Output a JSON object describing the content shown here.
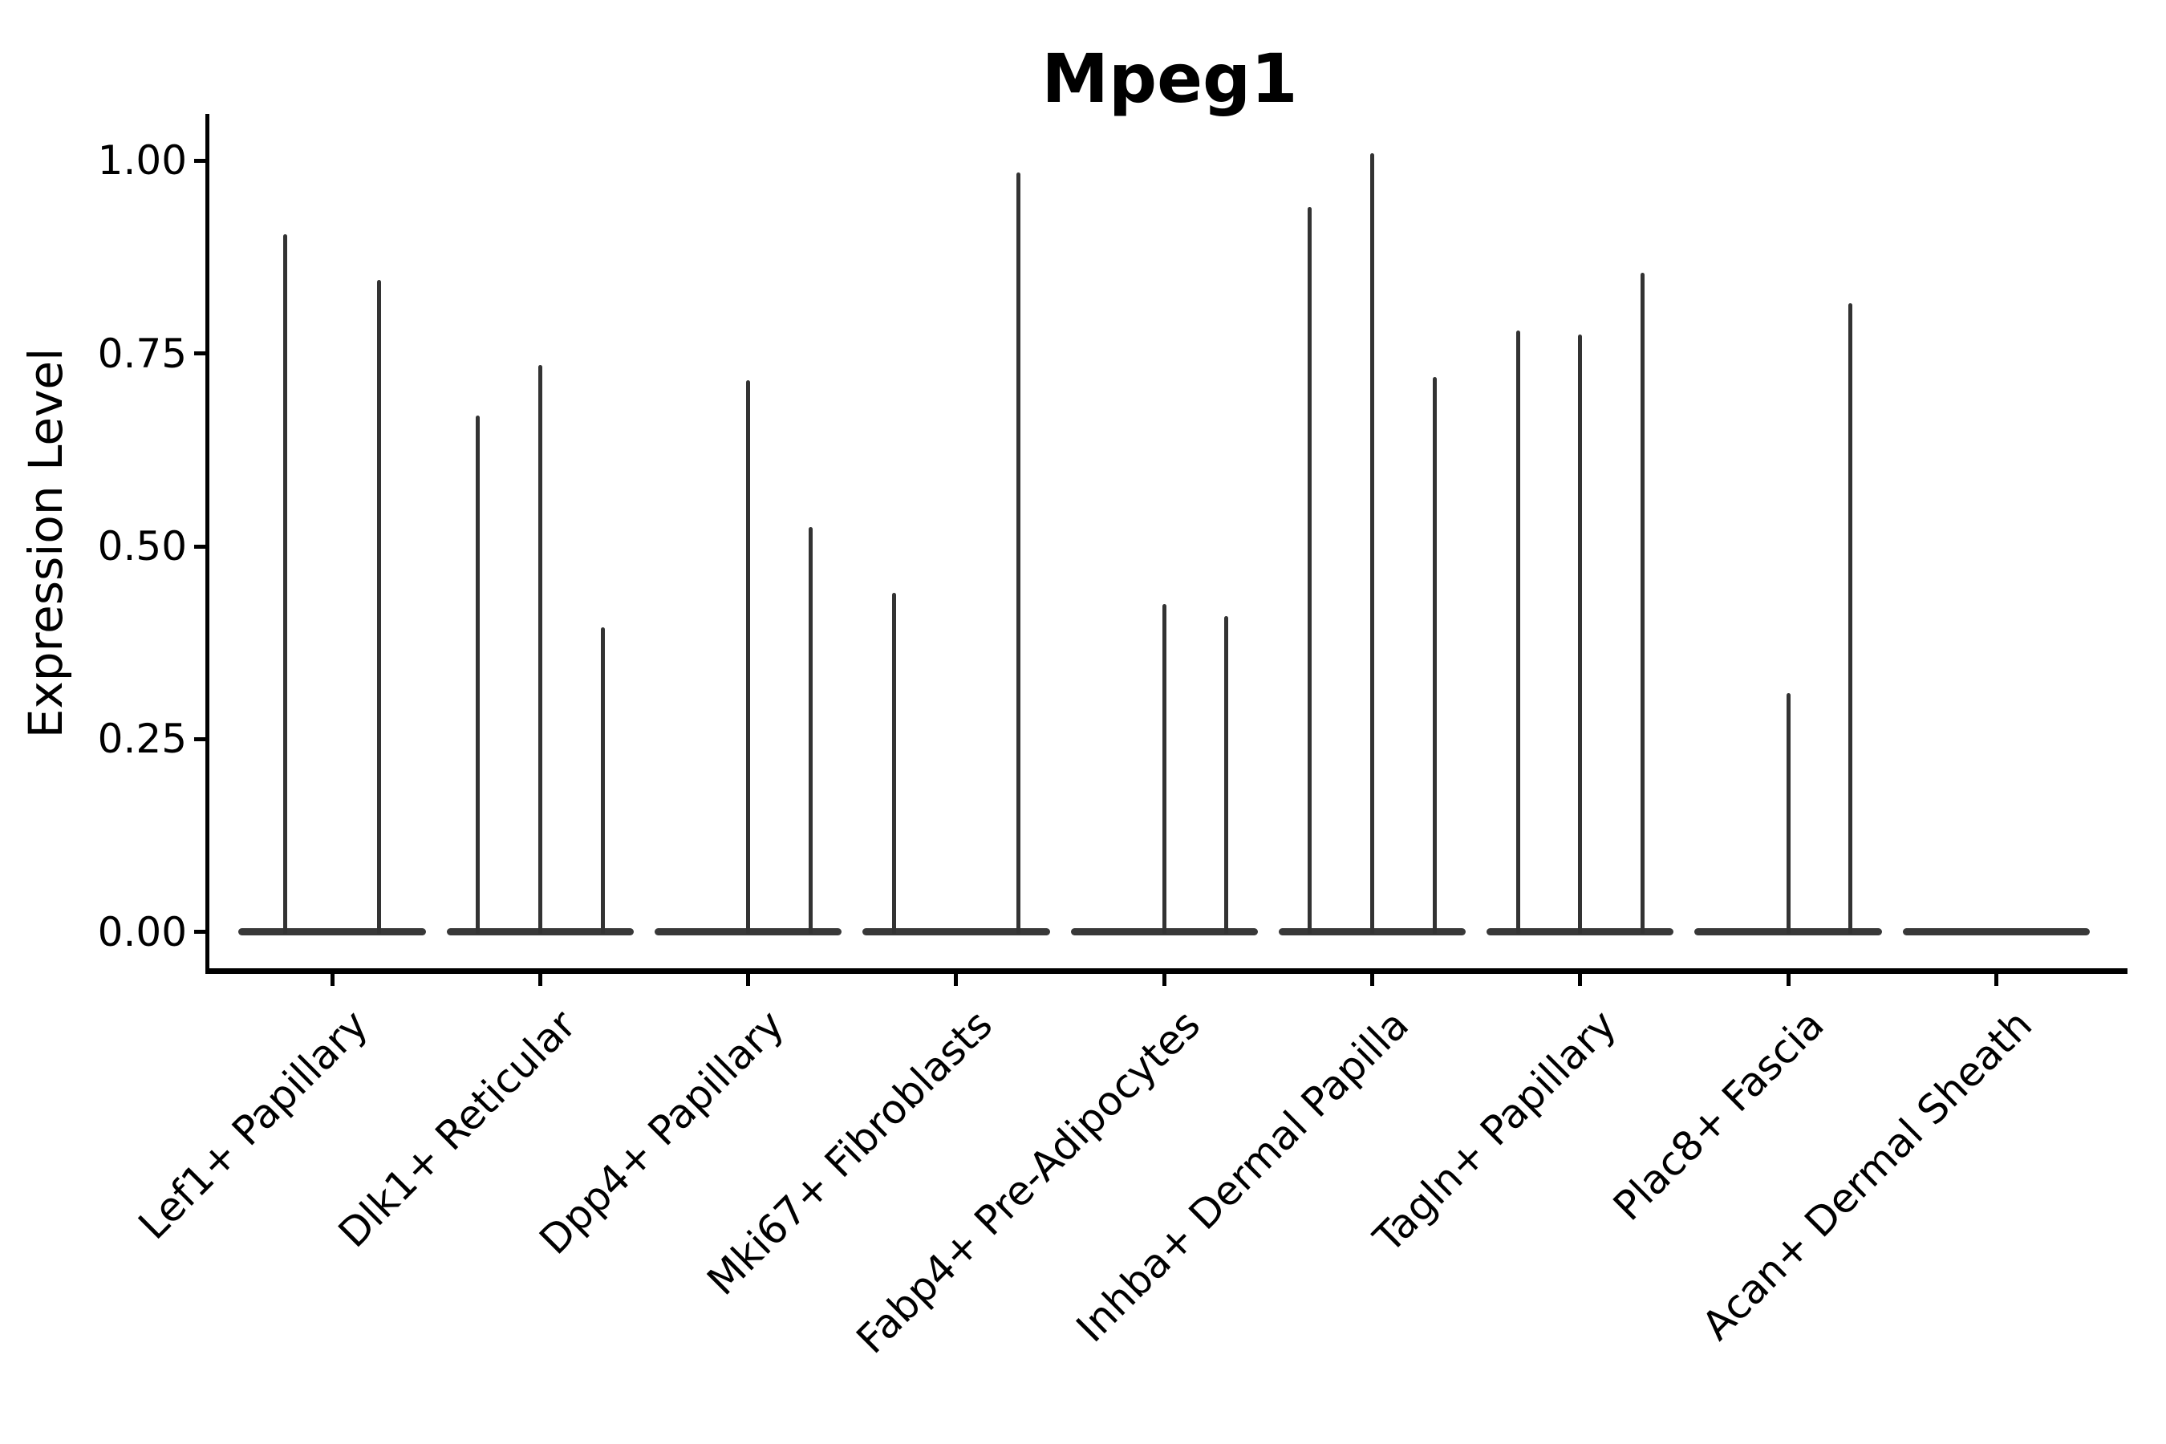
{
  "title": "Mpeg1",
  "y_axis": {
    "label": "Expression Level",
    "tick_labels": [
      "1.00",
      "0.75",
      "0.50",
      "0.25",
      "0.00"
    ]
  },
  "chart_data": {
    "type": "violin",
    "title": "Mpeg1",
    "xlabel": "",
    "ylabel": "Expression Level",
    "ylim": [
      0,
      1.06
    ],
    "yticks": [
      1.0,
      0.75,
      0.5,
      0.25,
      0.0
    ],
    "grid": false,
    "legend": "none",
    "note": "Single-cell expression violin plot: each category shows 1-3 dodged violins; expression is mostly zero giving a flat base at 0 with a thin spike up to the max value; 0 means an all-zero violin (no spike).",
    "categories": [
      {
        "label": "Lef1+ Papillary",
        "violin_max_values": [
          0.905,
          0.845
        ]
      },
      {
        "label": "Dlk1+ Reticular",
        "violin_max_values": [
          0.67,
          0.735,
          0.395
        ]
      },
      {
        "label": "Dpp4+ Papillary",
        "violin_max_values": [
          0,
          0.715,
          0.525
        ]
      },
      {
        "label": "Mki67+ Fibroblasts",
        "violin_max_values": [
          0.44,
          0,
          0.985
        ]
      },
      {
        "label": "Fabp4+ Pre-Adipocytes",
        "violin_max_values": [
          0,
          0.425,
          0.41
        ]
      },
      {
        "label": "Inhba+ Dermal Papilla",
        "violin_max_values": [
          0.94,
          1.01,
          0.72
        ]
      },
      {
        "label": "Tagln+ Papillary",
        "violin_max_values": [
          0.78,
          0.775,
          0.855
        ]
      },
      {
        "label": "Plac8+ Fascia",
        "violin_max_values": [
          0,
          0.31,
          0.815
        ]
      },
      {
        "label": "Acan+ Dermal Sheath",
        "violin_max_values": [
          0
        ]
      }
    ]
  },
  "colors": {
    "violin": "#333333",
    "axis": "#000000",
    "background": "#ffffff"
  }
}
